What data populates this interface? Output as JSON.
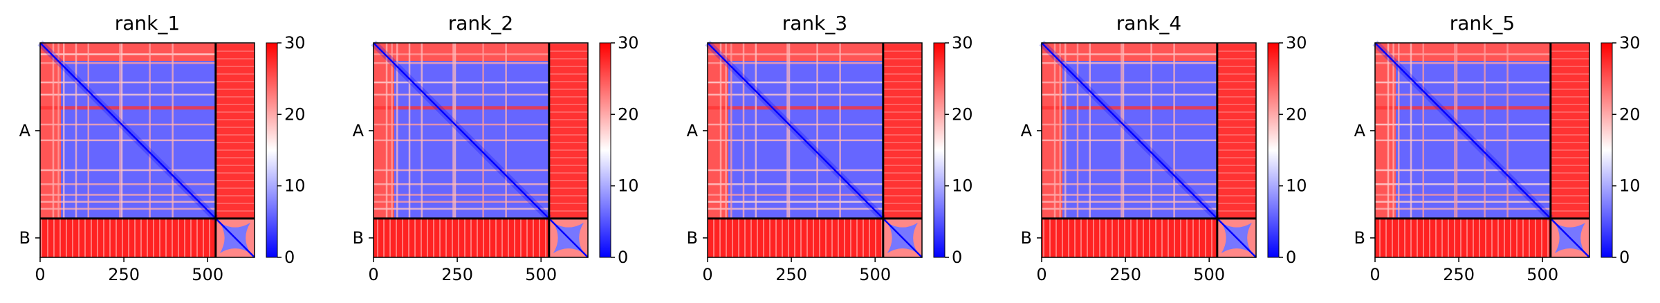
{
  "chart_data": {
    "type": "heatmap",
    "colormap": {
      "name": "bwr",
      "low": "#0000ff",
      "mid": "#ffffff",
      "high": "#ff0000"
    },
    "value_range": [
      0,
      30
    ],
    "colorbar_ticks": [
      "0",
      "10",
      "20",
      "30"
    ],
    "colorbar_tick_values": [
      0,
      10,
      20,
      30
    ],
    "x_ticks": [
      "0",
      "250",
      "500"
    ],
    "x_tick_values": [
      0,
      250,
      500
    ],
    "chain_labels": [
      "A",
      "B"
    ],
    "chain_lengths": {
      "A": 524,
      "B": 116
    },
    "total_length": 640,
    "chain_boundary_color": "#000000",
    "panels": [
      {
        "title": "rank_1"
      },
      {
        "title": "rank_2"
      },
      {
        "title": "rank_3"
      },
      {
        "title": "rank_4"
      },
      {
        "title": "rank_5"
      }
    ]
  }
}
